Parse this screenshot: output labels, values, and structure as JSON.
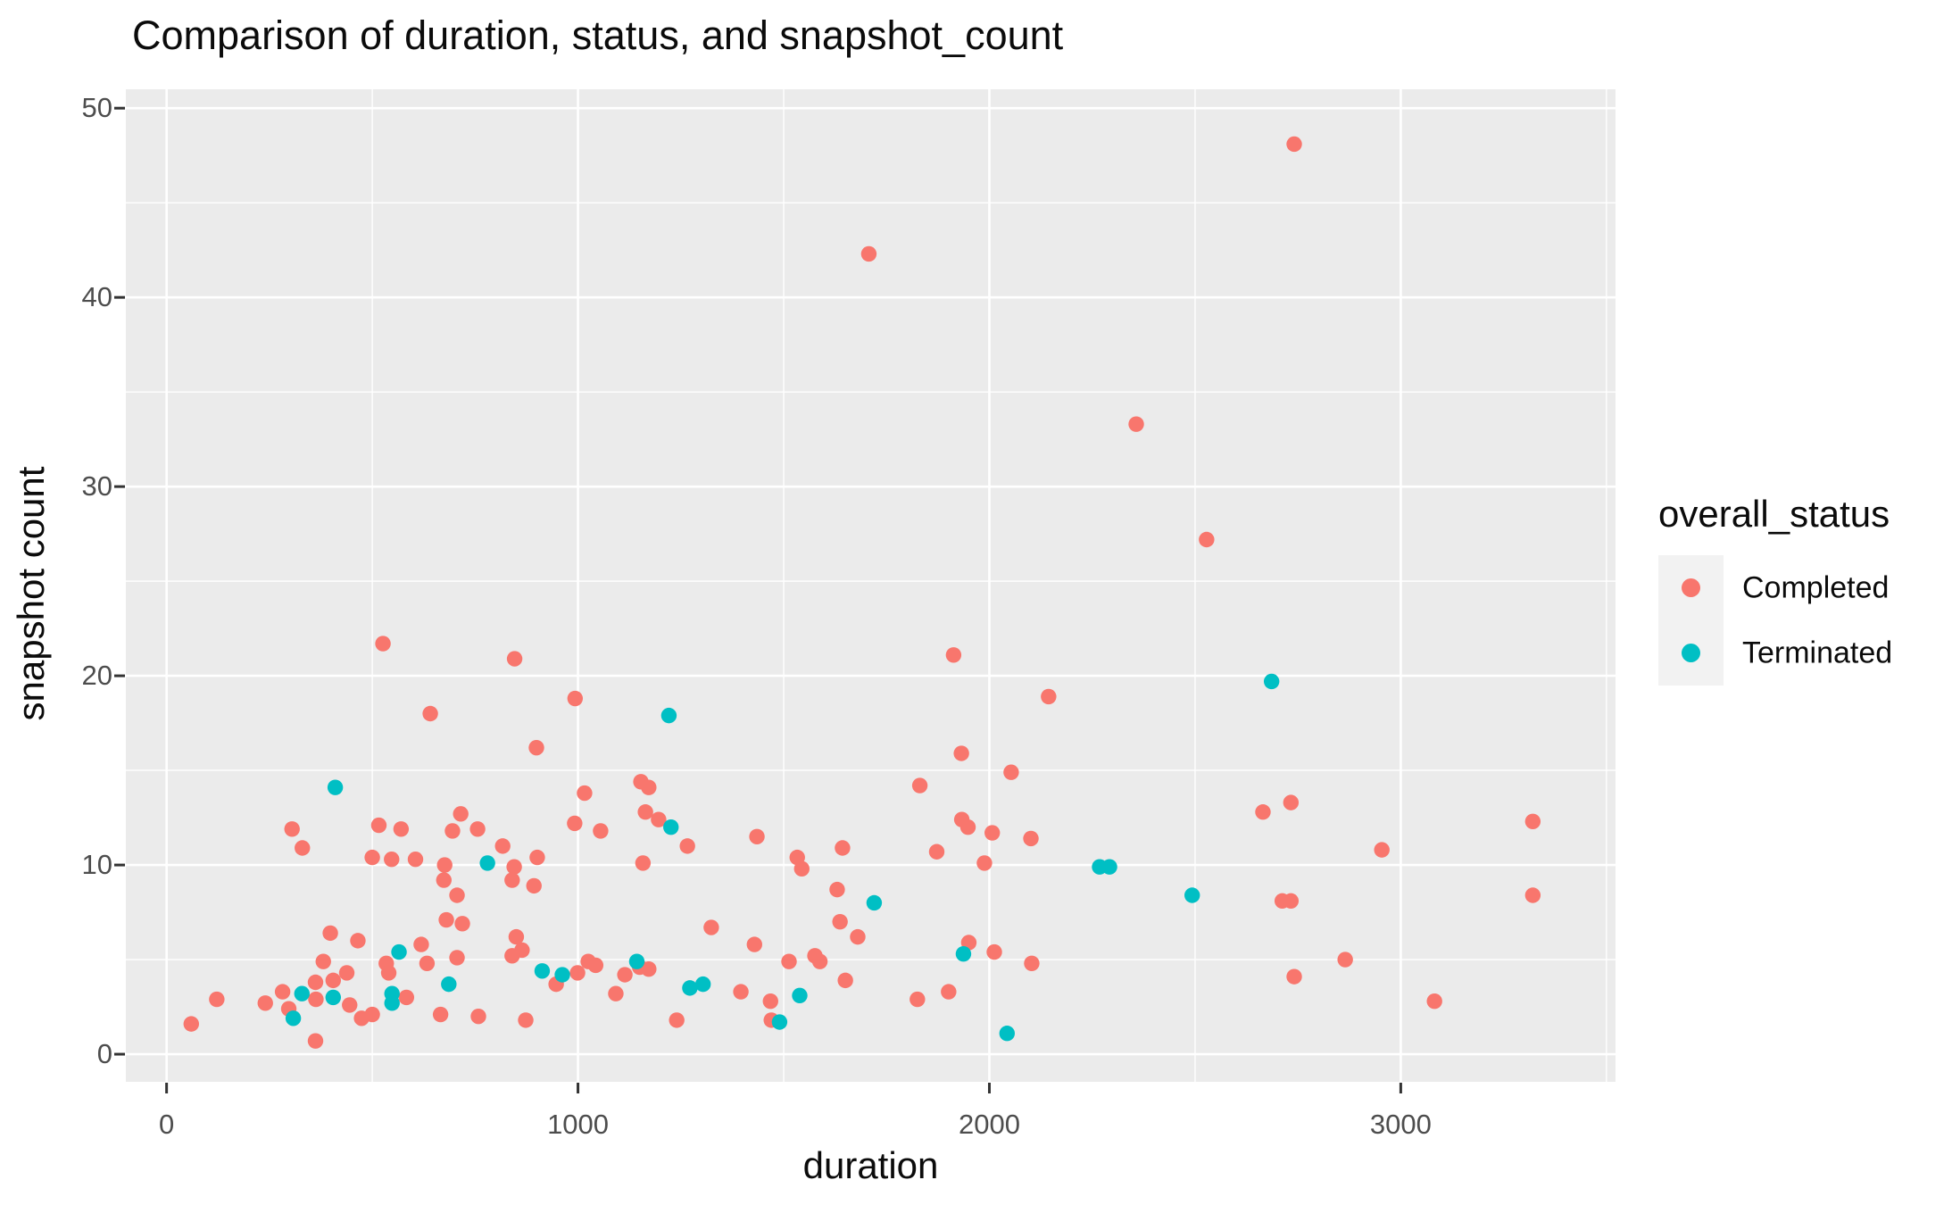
{
  "title": "Comparison of duration, status, and snapshot_count",
  "axes": {
    "x": {
      "label": "duration",
      "major_ticks": [
        0,
        1000,
        2000,
        3000
      ],
      "minor_ticks": [
        500,
        1500,
        2500,
        3500
      ],
      "range": [
        -99,
        3522
      ]
    },
    "y": {
      "label": "snapshot count",
      "major_ticks": [
        0,
        10,
        20,
        30,
        40,
        50
      ],
      "minor_ticks": [
        5,
        15,
        25,
        35,
        45
      ],
      "range": [
        -1.46,
        51.0
      ]
    }
  },
  "legend": {
    "title": "overall_status",
    "items": [
      {
        "label": "Completed",
        "color": "#F8766D"
      },
      {
        "label": "Terminated",
        "color": "#00BFC4"
      }
    ]
  },
  "colors": {
    "panel_bg": "#EBEBEB",
    "grid": "#FFFFFF",
    "tick_text": "#4D4D4D",
    "tick_mark": "#333333",
    "legend_key_bg": "#F2F2F2",
    "completed": "#F8766D",
    "terminated": "#00BFC4"
  },
  "chart_data": {
    "type": "scatter",
    "title": "Comparison of duration, status, and snapshot_count",
    "xlabel": "duration",
    "ylabel": "snapshot count",
    "xlim": [
      -99,
      3522
    ],
    "ylim": [
      -1.46,
      51.0
    ],
    "grid": true,
    "legend_position": "right",
    "series": [
      {
        "name": "Completed",
        "color": "#F8766D",
        "points": [
          [
            2741,
            48.1
          ],
          [
            1707,
            42.3
          ],
          [
            2357,
            33.3
          ],
          [
            2528,
            27.2
          ],
          [
            526,
            21.7
          ],
          [
            1913,
            21.1
          ],
          [
            846,
            20.9
          ],
          [
            2144,
            18.9
          ],
          [
            993,
            18.8
          ],
          [
            641,
            18.0
          ],
          [
            899,
            16.2
          ],
          [
            1932,
            15.9
          ],
          [
            2053,
            14.9
          ],
          [
            1153,
            14.4
          ],
          [
            1831,
            14.2
          ],
          [
            1172,
            14.1
          ],
          [
            1016,
            13.8
          ],
          [
            2733,
            13.3
          ],
          [
            2665,
            12.8
          ],
          [
            1164,
            12.8
          ],
          [
            715,
            12.7
          ],
          [
            1933,
            12.4
          ],
          [
            1196,
            12.4
          ],
          [
            3321,
            12.3
          ],
          [
            992,
            12.2
          ],
          [
            516,
            12.1
          ],
          [
            1948,
            12.0
          ],
          [
            305,
            11.9
          ],
          [
            570,
            11.9
          ],
          [
            756,
            11.9
          ],
          [
            1055,
            11.8
          ],
          [
            695,
            11.8
          ],
          [
            2007,
            11.7
          ],
          [
            1435,
            11.5
          ],
          [
            2101,
            11.4
          ],
          [
            817,
            11.0
          ],
          [
            1266,
            11.0
          ],
          [
            330,
            10.9
          ],
          [
            1643,
            10.9
          ],
          [
            2954,
            10.8
          ],
          [
            1872,
            10.7
          ],
          [
            500,
            10.4
          ],
          [
            901,
            10.4
          ],
          [
            1533,
            10.4
          ],
          [
            547,
            10.3
          ],
          [
            605,
            10.3
          ],
          [
            1988,
            10.1
          ],
          [
            1158,
            10.1
          ],
          [
            676,
            10.0
          ],
          [
            845,
            9.9
          ],
          [
            1544,
            9.8
          ],
          [
            840,
            9.2
          ],
          [
            674,
            9.2
          ],
          [
            893,
            8.9
          ],
          [
            1630,
            8.7
          ],
          [
            3321,
            8.4
          ],
          [
            706,
            8.4
          ],
          [
            2712,
            8.1
          ],
          [
            2733,
            8.1
          ],
          [
            680,
            7.1
          ],
          [
            1637,
            7.0
          ],
          [
            719,
            6.9
          ],
          [
            1324,
            6.7
          ],
          [
            398,
            6.4
          ],
          [
            850,
            6.2
          ],
          [
            1680,
            6.2
          ],
          [
            465,
            6.0
          ],
          [
            1950,
            5.9
          ],
          [
            619,
            5.8
          ],
          [
            1429,
            5.8
          ],
          [
            864,
            5.5
          ],
          [
            2012,
            5.4
          ],
          [
            1576,
            5.2
          ],
          [
            840,
            5.2
          ],
          [
            706,
            5.1
          ],
          [
            2865,
            5.0
          ],
          [
            1513,
            4.9
          ],
          [
            1588,
            4.9
          ],
          [
            1025,
            4.9
          ],
          [
            381,
            4.9
          ],
          [
            534,
            4.8
          ],
          [
            633,
            4.8
          ],
          [
            2103,
            4.8
          ],
          [
            1043,
            4.7
          ],
          [
            1150,
            4.6
          ],
          [
            1172,
            4.5
          ],
          [
            438,
            4.3
          ],
          [
            999,
            4.3
          ],
          [
            540,
            4.3
          ],
          [
            1114,
            4.2
          ],
          [
            2741,
            4.1
          ],
          [
            405,
            3.9
          ],
          [
            1650,
            3.9
          ],
          [
            362,
            3.8
          ],
          [
            947,
            3.7
          ],
          [
            1396,
            3.3
          ],
          [
            1901,
            3.3
          ],
          [
            282,
            3.3
          ],
          [
            1092,
            3.2
          ],
          [
            583,
            3.0
          ],
          [
            363,
            2.9
          ],
          [
            122,
            2.9
          ],
          [
            1825,
            2.9
          ],
          [
            3082,
            2.8
          ],
          [
            1468,
            2.8
          ],
          [
            240,
            2.7
          ],
          [
            445,
            2.6
          ],
          [
            297,
            2.4
          ],
          [
            666,
            2.1
          ],
          [
            500,
            2.1
          ],
          [
            758,
            2.0
          ],
          [
            474,
            1.9
          ],
          [
            873,
            1.8
          ],
          [
            1240,
            1.8
          ],
          [
            1470,
            1.8
          ],
          [
            60,
            1.6
          ],
          [
            362,
            0.7
          ]
        ]
      },
      {
        "name": "Terminated",
        "color": "#00BFC4",
        "points": [
          [
            2686,
            19.7
          ],
          [
            1221,
            17.9
          ],
          [
            410,
            14.1
          ],
          [
            1226,
            12.0
          ],
          [
            780,
            10.1
          ],
          [
            2268,
            9.9
          ],
          [
            2292,
            9.9
          ],
          [
            2493,
            8.4
          ],
          [
            1720,
            8.0
          ],
          [
            565,
            5.4
          ],
          [
            1937,
            5.3
          ],
          [
            1143,
            4.9
          ],
          [
            913,
            4.4
          ],
          [
            962,
            4.2
          ],
          [
            686,
            3.7
          ],
          [
            1304,
            3.7
          ],
          [
            1272,
            3.5
          ],
          [
            548,
            3.2
          ],
          [
            329,
            3.2
          ],
          [
            1539,
            3.1
          ],
          [
            405,
            3.0
          ],
          [
            548,
            2.7
          ],
          [
            308,
            1.9
          ],
          [
            1490,
            1.7
          ],
          [
            2043,
            1.1
          ]
        ]
      }
    ]
  }
}
